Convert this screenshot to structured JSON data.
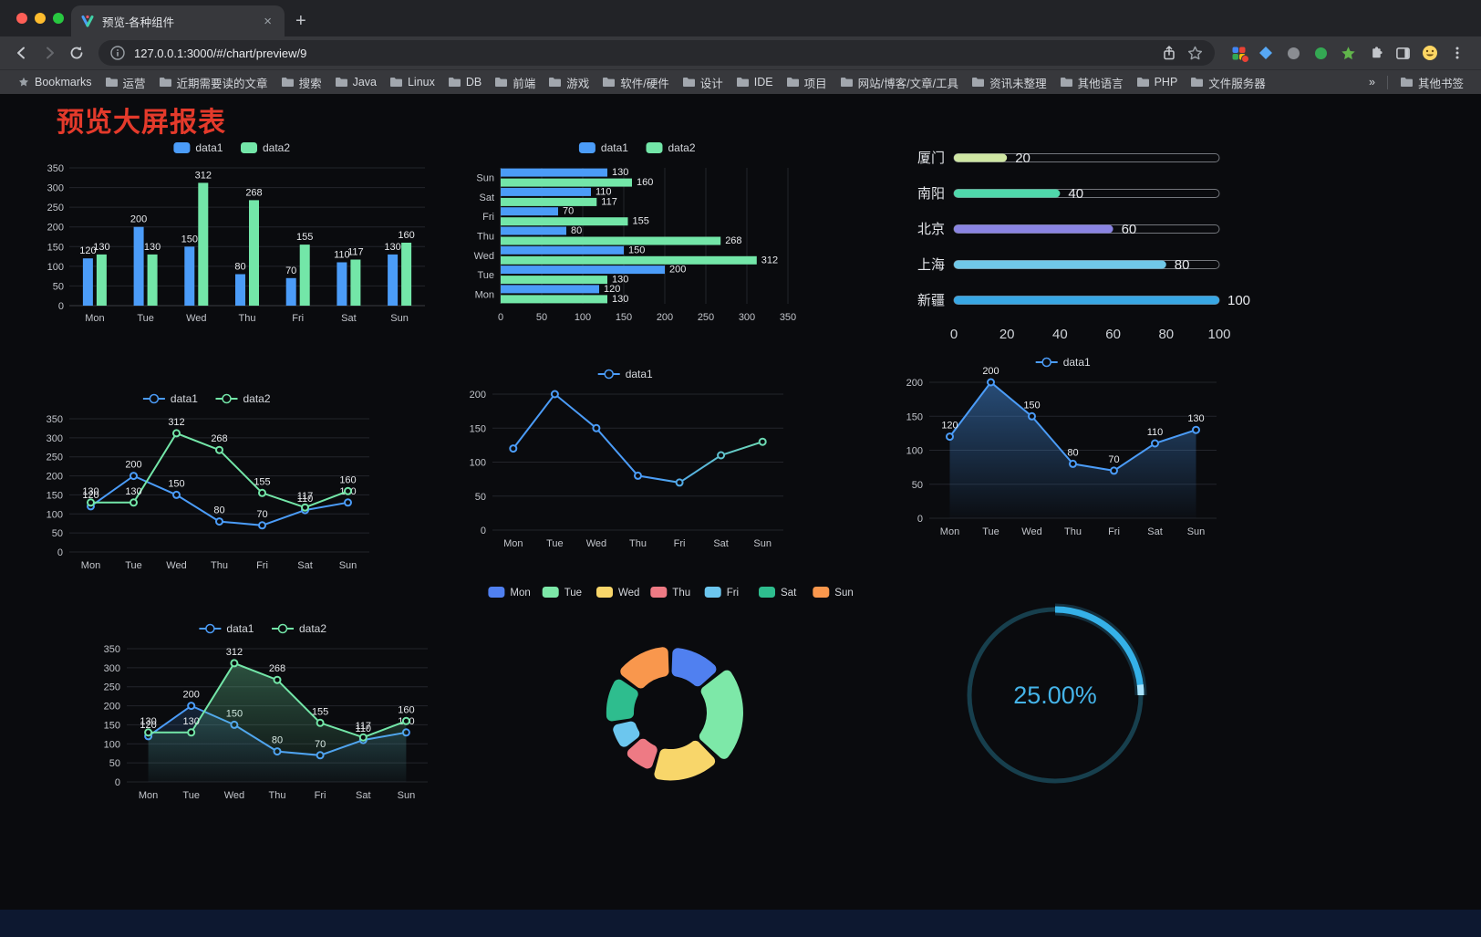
{
  "browser": {
    "tab_title": "预览-各种组件",
    "url": "127.0.0.1:3000/#/chart/preview/9",
    "new_tab_label": "+",
    "bookmarks_label": "Bookmarks",
    "bookmark_folders": [
      "运营",
      "近期需要读的文章",
      "搜索",
      "Java",
      "Linux",
      "DB",
      "前端",
      "游戏",
      "软件/硬件",
      "设计",
      "IDE",
      "项目",
      "网站/博客/文章/工具",
      "资讯未整理",
      "其他语言",
      "PHP",
      "文件服务器"
    ],
    "bookmarks_overflow": "»",
    "other_bookmarks_label": "其他书签",
    "traffic_light_colors": [
      "#ff5f57",
      "#febc2e",
      "#28c840"
    ]
  },
  "page": {
    "title": "预览大屏报表",
    "title_color": "#e43a2b"
  },
  "chart_data": [
    {
      "id": "bar-grouped-vertical",
      "type": "bar",
      "categories": [
        "Mon",
        "Tue",
        "Wed",
        "Thu",
        "Fri",
        "Sat",
        "Sun"
      ],
      "series": [
        {
          "name": "data1",
          "color": "#4b9cf8",
          "values": [
            120,
            200,
            150,
            80,
            70,
            110,
            130
          ]
        },
        {
          "name": "data2",
          "color": "#73e6a8",
          "values": [
            130,
            130,
            312,
            268,
            155,
            117,
            160
          ]
        }
      ],
      "ylim": [
        0,
        350
      ],
      "ytick": 50,
      "legend_position": "top",
      "value_labels": true
    },
    {
      "id": "bar-grouped-horizontal",
      "type": "bar-horizontal",
      "categories": [
        "Mon",
        "Tue",
        "Wed",
        "Thu",
        "Fri",
        "Sat",
        "Sun"
      ],
      "series": [
        {
          "name": "data1",
          "color": "#4b9cf8",
          "values": [
            120,
            200,
            150,
            80,
            70,
            110,
            130
          ]
        },
        {
          "name": "data2",
          "color": "#73e6a8",
          "values": [
            130,
            130,
            312,
            268,
            155,
            117,
            160
          ]
        }
      ],
      "xlim": [
        0,
        350
      ],
      "xtick": 50,
      "legend_position": "top",
      "value_labels": true
    },
    {
      "id": "progress-bars",
      "type": "bar-horizontal-single",
      "items": [
        {
          "label": "厦门",
          "value": 20,
          "color": "#cfe6a3"
        },
        {
          "label": "南阳",
          "value": 40,
          "color": "#4fd8ab"
        },
        {
          "label": "北京",
          "value": 60,
          "color": "#8a84e2"
        },
        {
          "label": "上海",
          "value": 80,
          "color": "#70c8e8"
        },
        {
          "label": "新疆",
          "value": 100,
          "color": "#38a7e4"
        }
      ],
      "xlim": [
        0,
        100
      ],
      "xticks": [
        0,
        20,
        40,
        60,
        80,
        100
      ]
    },
    {
      "id": "line-two-series",
      "type": "line",
      "categories": [
        "Mon",
        "Tue",
        "Wed",
        "Thu",
        "Fri",
        "Sat",
        "Sun"
      ],
      "series": [
        {
          "name": "data1",
          "color": "#4b9cf8",
          "values": [
            120,
            200,
            150,
            80,
            70,
            110,
            130
          ]
        },
        {
          "name": "data2",
          "color": "#73e6a8",
          "values": [
            130,
            130,
            312,
            268,
            155,
            117,
            160
          ]
        }
      ],
      "ylim": [
        0,
        350
      ],
      "ytick": 50,
      "value_labels": true
    },
    {
      "id": "line-gradient",
      "type": "line",
      "categories": [
        "Mon",
        "Tue",
        "Wed",
        "Thu",
        "Fri",
        "Sat",
        "Sun"
      ],
      "series": [
        {
          "name": "data1",
          "color": "#4b9cf8",
          "color_end": "#73e6a8",
          "values": [
            120,
            200,
            150,
            80,
            70,
            110,
            130
          ]
        }
      ],
      "ylim": [
        0,
        200
      ],
      "ytick": 50,
      "value_labels": false
    },
    {
      "id": "line-area",
      "type": "line",
      "categories": [
        "Mon",
        "Tue",
        "Wed",
        "Thu",
        "Fri",
        "Sat",
        "Sun"
      ],
      "series": [
        {
          "name": "data1",
          "color": "#4b9cf8",
          "values": [
            120,
            200,
            150,
            80,
            70,
            110,
            130
          ],
          "area": true,
          "area_opacity": 0.45
        }
      ],
      "ylim": [
        0,
        200
      ],
      "ytick": 50,
      "value_labels": true
    },
    {
      "id": "line-two-area",
      "type": "line",
      "categories": [
        "Mon",
        "Tue",
        "Wed",
        "Thu",
        "Fri",
        "Sat",
        "Sun"
      ],
      "series": [
        {
          "name": "data1",
          "color": "#4b9cf8",
          "values": [
            120,
            200,
            150,
            80,
            70,
            110,
            130
          ],
          "area": true,
          "area_opacity": 0.18
        },
        {
          "name": "data2",
          "color": "#73e6a8",
          "values": [
            130,
            130,
            312,
            268,
            155,
            117,
            160
          ],
          "area": true,
          "area_opacity": 0.32
        }
      ],
      "ylim": [
        0,
        350
      ],
      "ytick": 50,
      "value_labels": true
    },
    {
      "id": "donut",
      "type": "pie",
      "labels": [
        "Mon",
        "Tue",
        "Wed",
        "Thu",
        "Fri",
        "Sat",
        "Sun"
      ],
      "values": [
        120,
        200,
        150,
        80,
        70,
        110,
        130
      ],
      "colors": [
        "#5080f0",
        "#7de8a8",
        "#f8d66a",
        "#ee7a84",
        "#6cc6ee",
        "#2ebd8e",
        "#f9974d"
      ],
      "legend_position": "top"
    },
    {
      "id": "gauge",
      "type": "gauge",
      "value": 25,
      "label": "25.00%",
      "color": "#35b1e8",
      "tip_color": "#a8e2fb",
      "track_color": "#173f4d",
      "text_color": "#45b4e9"
    }
  ]
}
